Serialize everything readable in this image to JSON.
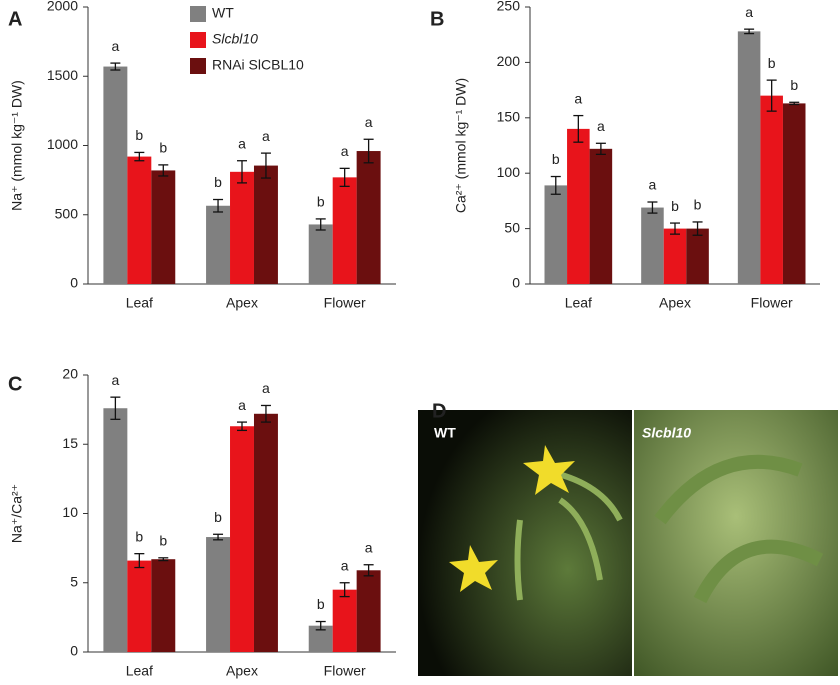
{
  "chart_data": [
    {
      "type": "bar",
      "panel_label": "A",
      "y_label": "Na⁺ (mmol kg⁻¹ DW)",
      "categories": [
        "Leaf",
        "Apex",
        "Flower"
      ],
      "legend": true,
      "series": [
        {
          "name": "WT",
          "color": "#808080",
          "values": [
            1570,
            565,
            430
          ],
          "errors": [
            25,
            45,
            40
          ],
          "letters": [
            "a",
            "b",
            "b"
          ]
        },
        {
          "name": "Slcbl10",
          "color": "#e8141b",
          "values": [
            920,
            810,
            770
          ],
          "errors": [
            30,
            80,
            65
          ],
          "letters": [
            "b",
            "a",
            "a"
          ]
        },
        {
          "name": "RNAi SlCBL10",
          "color": "#6b0f0f",
          "values": [
            820,
            855,
            960
          ],
          "errors": [
            40,
            90,
            85
          ],
          "letters": [
            "b",
            "a",
            "a"
          ]
        }
      ],
      "ylim": [
        0,
        2000
      ],
      "yticks": [
        0,
        500,
        1000,
        1500,
        2000
      ]
    },
    {
      "type": "bar",
      "panel_label": "B",
      "y_label": "Ca²⁺ (mmol kg⁻¹ DW)",
      "categories": [
        "Leaf",
        "Apex",
        "Flower"
      ],
      "legend": false,
      "series": [
        {
          "color": "#808080",
          "values": [
            89,
            69,
            228
          ],
          "errors": [
            8,
            5,
            2
          ],
          "letters": [
            "b",
            "a",
            "a"
          ]
        },
        {
          "color": "#e8141b",
          "values": [
            140,
            50,
            170
          ],
          "errors": [
            12,
            5,
            14
          ],
          "letters": [
            "a",
            "b",
            "b"
          ]
        },
        {
          "color": "#6b0f0f",
          "values": [
            122,
            50,
            163
          ],
          "errors": [
            5,
            6,
            1
          ],
          "letters": [
            "a",
            "b",
            "b"
          ]
        }
      ],
      "ylim": [
        0,
        250
      ],
      "yticks": [
        0,
        50,
        100,
        150,
        200,
        250
      ]
    },
    {
      "type": "bar",
      "panel_label": "C",
      "y_label": "Na⁺/Ca²⁺",
      "categories": [
        "Leaf",
        "Apex",
        "Flower"
      ],
      "legend": false,
      "series": [
        {
          "color": "#808080",
          "values": [
            17.6,
            8.3,
            1.9
          ],
          "errors": [
            0.8,
            0.2,
            0.3
          ],
          "letters": [
            "a",
            "b",
            "b"
          ]
        },
        {
          "color": "#e8141b",
          "values": [
            6.6,
            16.3,
            4.5
          ],
          "errors": [
            0.5,
            0.3,
            0.5
          ],
          "letters": [
            "b",
            "a",
            "a"
          ]
        },
        {
          "color": "#6b0f0f",
          "values": [
            6.7,
            17.2,
            5.9
          ],
          "errors": [
            0.1,
            0.6,
            0.4
          ],
          "letters": [
            "b",
            "a",
            "a"
          ]
        }
      ],
      "ylim": [
        0,
        20
      ],
      "yticks": [
        0,
        5,
        10,
        15,
        20
      ]
    }
  ],
  "photo": {
    "panel_label": "D",
    "labels": [
      "WT",
      "Slcbl10"
    ]
  }
}
